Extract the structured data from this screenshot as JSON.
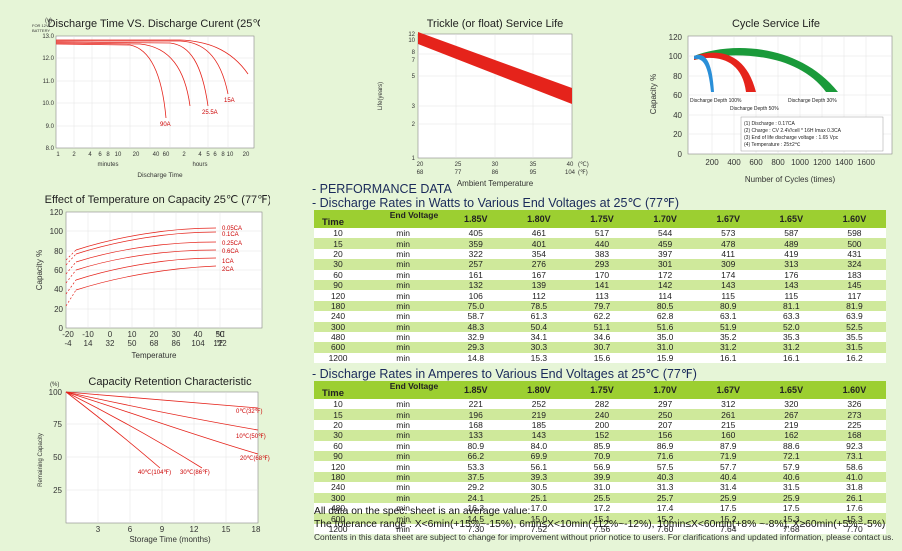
{
  "charts": {
    "discharge_time": {
      "title": "Discharge Time VS. Discharge Curent (25℃)",
      "yunit": "(v)",
      "ynote1": "FOR 12V",
      "ynote2": "BATTERY",
      "yticks": [
        "13.0",
        "12.0",
        "11.0",
        "10.0",
        "9.0",
        "8.0"
      ],
      "xticks_min": [
        "1",
        "2",
        "4",
        "6",
        "8",
        "10",
        "20",
        "40",
        "60"
      ],
      "xticks_hr": [
        "2",
        "4",
        "5",
        "6",
        "8",
        "10",
        "20"
      ],
      "xlabel_min": "minutes",
      "xlabel_hr": "hours",
      "xlabel": "Discharge Time",
      "labels": [
        "90A",
        "25.5A",
        "15A"
      ]
    },
    "trickle": {
      "title": "Trickle (or float) Service Life",
      "ylabel": "Life(years)",
      "yticks": [
        "12",
        "10",
        "8",
        "7",
        "5",
        "3",
        "2",
        "1"
      ],
      "xticks_c": [
        "20",
        "25",
        "30",
        "35",
        "40"
      ],
      "xticks_f": [
        "68",
        "77",
        "86",
        "95",
        "104"
      ],
      "unit_c": "(℃)",
      "unit_f": "(℉)",
      "xlabel": "Ambient Temperature"
    },
    "cycle": {
      "title": "Cycle Service Life",
      "ylabel": "Capacity %",
      "yticks": [
        "120",
        "100",
        "80",
        "60",
        "40",
        "20",
        "0"
      ],
      "xticks": [
        "200",
        "400",
        "600",
        "800",
        "1000",
        "1200",
        "1400",
        "1600"
      ],
      "xlabel": "Number of Cycles (times)",
      "labels": [
        "Discharge Depth 100%",
        "Discharge Depth 50%",
        "Discharge Depth 30%"
      ],
      "notes": [
        "(1) Discharge : 0.17CA",
        "(2) Charge : CV 2.4V/cell * 16H Imax 0.3CA",
        "(3) End of life discharge voltage : 1.65 Vpc",
        "(4) Temperature : 25±2℃"
      ]
    },
    "temperature": {
      "title": "Effect of Temperature on Capacity 25℃ (77℉)",
      "ylabel": "Capacity %",
      "yticks": [
        "120",
        "100",
        "80",
        "60",
        "40",
        "20",
        "0"
      ],
      "xticks_c": [
        "-20",
        "-10",
        "0",
        "10",
        "20",
        "30",
        "40",
        "50"
      ],
      "xticks_f": [
        "-4",
        "14",
        "32",
        "50",
        "68",
        "86",
        "104",
        "122"
      ],
      "unit_c": "℃",
      "unit_f": "℉",
      "xlabel": "Temperature",
      "labels": [
        "0.05CA",
        "0.1CA",
        "0.25CA",
        "0.6CA",
        "1CA",
        "2CA"
      ]
    },
    "retention": {
      "title": "Capacity Retention Characteristic",
      "yunit": "(%)",
      "ylabel": "Remaining Capacity",
      "yticks": [
        "100",
        "75",
        "50",
        "25"
      ],
      "xticks": [
        "3",
        "6",
        "9",
        "12",
        "15",
        "18"
      ],
      "xlabel": "Storage Time (months)",
      "labels": [
        "0℃(32℉)",
        "10℃(50℉)",
        "20℃(68℉)",
        "40℃(104℉)",
        "30℃(86℉)"
      ]
    }
  },
  "performance": {
    "heading": "- PERFORMANCE DATA",
    "watts_title": "- Discharge Rates in Watts to Various End Voltages at 25℃ (77℉)",
    "amps_title": "- Discharge Rates in Amperes to Various End Voltages at 25℃ (77℉)",
    "header": {
      "end_voltage": "End Voltage",
      "time": "Time"
    },
    "voltages": [
      "1.85V",
      "1.80V",
      "1.75V",
      "1.70V",
      "1.67V",
      "1.65V",
      "1.60V"
    ],
    "watts": [
      [
        "10",
        "min",
        "405",
        "461",
        "517",
        "544",
        "573",
        "587",
        "598"
      ],
      [
        "15",
        "min",
        "359",
        "401",
        "440",
        "459",
        "478",
        "489",
        "500"
      ],
      [
        "20",
        "min",
        "322",
        "354",
        "383",
        "397",
        "411",
        "419",
        "431"
      ],
      [
        "30",
        "min",
        "257",
        "276",
        "293",
        "301",
        "309",
        "313",
        "324"
      ],
      [
        "60",
        "min",
        "161",
        "167",
        "170",
        "172",
        "174",
        "176",
        "183"
      ],
      [
        "90",
        "min",
        "132",
        "139",
        "141",
        "142",
        "143",
        "143",
        "145"
      ],
      [
        "120",
        "min",
        "106",
        "112",
        "113",
        "114",
        "115",
        "115",
        "117"
      ],
      [
        "180",
        "min",
        "75.0",
        "78.5",
        "79.7",
        "80.5",
        "80.9",
        "81.1",
        "81.9"
      ],
      [
        "240",
        "min",
        "58.7",
        "61.3",
        "62.2",
        "62.8",
        "63.1",
        "63.3",
        "63.9"
      ],
      [
        "300",
        "min",
        "48.3",
        "50.4",
        "51.1",
        "51.6",
        "51.9",
        "52.0",
        "52.5"
      ],
      [
        "480",
        "min",
        "32.9",
        "34.1",
        "34.6",
        "35.0",
        "35.2",
        "35.3",
        "35.5"
      ],
      [
        "600",
        "min",
        "29.3",
        "30.3",
        "30.7",
        "31.0",
        "31.2",
        "31.2",
        "31.5"
      ],
      [
        "1200",
        "min",
        "14.8",
        "15.3",
        "15.6",
        "15.9",
        "16.1",
        "16.1",
        "16.2"
      ]
    ],
    "amps": [
      [
        "10",
        "min",
        "221",
        "252",
        "282",
        "297",
        "312",
        "320",
        "326"
      ],
      [
        "15",
        "min",
        "196",
        "219",
        "240",
        "250",
        "261",
        "267",
        "273"
      ],
      [
        "20",
        "min",
        "168",
        "185",
        "200",
        "207",
        "215",
        "219",
        "225"
      ],
      [
        "30",
        "min",
        "133",
        "143",
        "152",
        "156",
        "160",
        "162",
        "168"
      ],
      [
        "60",
        "min",
        "80.9",
        "84.0",
        "85.9",
        "86.9",
        "87.9",
        "88.6",
        "92.3"
      ],
      [
        "90",
        "min",
        "66.2",
        "69.9",
        "70.9",
        "71.6",
        "71.9",
        "72.1",
        "73.1"
      ],
      [
        "120",
        "min",
        "53.3",
        "56.1",
        "56.9",
        "57.5",
        "57.7",
        "57.9",
        "58.6"
      ],
      [
        "180",
        "min",
        "37.5",
        "39.3",
        "39.9",
        "40.3",
        "40.4",
        "40.6",
        "41.0"
      ],
      [
        "240",
        "min",
        "29.2",
        "30.5",
        "31.0",
        "31.3",
        "31.4",
        "31.5",
        "31.8"
      ],
      [
        "300",
        "min",
        "24.1",
        "25.1",
        "25.5",
        "25.7",
        "25.9",
        "25.9",
        "26.1"
      ],
      [
        "480",
        "min",
        "16.3",
        "17.0",
        "17.2",
        "17.4",
        "17.5",
        "17.5",
        "17.6"
      ],
      [
        "600",
        "min",
        "14.5",
        "15.0",
        "15.1",
        "15.2",
        "15.2",
        "15.3",
        "15.3"
      ],
      [
        "1200",
        "min",
        "7.30",
        "7.52",
        "7.56",
        "7.60",
        "7.64",
        "7.68",
        "7.70"
      ]
    ]
  },
  "notes": {
    "line1": "All data on the spec. sheet is an average value:",
    "line2": "The tolerance range : X<6min(+15%~-15%), 6min≤X<10min(+12%~-12%), 10min≤X<60min(+8% ~-8%), X≥60min(+5%~-5%)",
    "line3": "Contents in this data sheet are subject to change for improvement without prior notice to users. For clarifications and updated information, please contact us."
  },
  "colors": {
    "background": "#e6f5d7",
    "header_green": "#9ccf31",
    "row_green": "#cfe99b",
    "curve_red": "#e5231b",
    "curve_green": "#1a9a3a",
    "curve_blue": "#2a8fd8"
  }
}
